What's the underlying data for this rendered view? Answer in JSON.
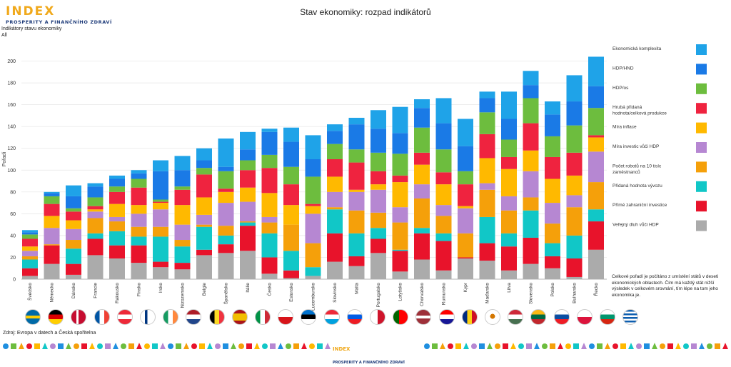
{
  "header": {
    "logo_main": "INDEX",
    "logo_sub": "PROSPERITY A FINANČNÍHO ZDRAVÍ",
    "title": "Stav ekonomiky: rozpad indikátorů"
  },
  "filter": {
    "label": "Indikátory stavu ekonomiky",
    "value": "All"
  },
  "note": "Celkové pořadí je počítáno z umístění států v deseti ekonomických oblastech. Čím má každý stát nižší výsledek v celkovém srovnání, tím lépe na tom jeho ekonomika je.",
  "source": "Zdroj: Evropa v datech a Česká spořitelna",
  "footer_logo": {
    "l1": "INDEX",
    "l2": "PROSPERITY A FINANČNÍHO ZDRAVÍ"
  },
  "chart_data": {
    "type": "bar",
    "stacked": true,
    "title": "Stav ekonomiky: rozpad indikátorů",
    "ylabel": "Pořadí",
    "xlabel": "",
    "ylim": [
      0,
      220
    ],
    "yticks": [
      0,
      20,
      40,
      60,
      80,
      100,
      120,
      140,
      160,
      180,
      200
    ],
    "grid": true,
    "legend_position": "right",
    "categories": [
      "Švédsko",
      "Německo",
      "Dánsko",
      "Francie",
      "Rakousko",
      "Finsko",
      "Irsko",
      "Nizozemsko",
      "Belgie",
      "Španělsko",
      "Itálie",
      "Česko",
      "Estonsko",
      "Lucembursko",
      "Slovinsko",
      "Malta",
      "Portugalsko",
      "Lotyšsko",
      "Chorvatsko",
      "Rumunsko",
      "Kypr",
      "Maďarsko",
      "Litva",
      "Slovensko",
      "Polsko",
      "Bulharsko",
      "Řecko"
    ],
    "series": [
      {
        "name": "Veřejný dluh vůči HDP",
        "color": "#ababab",
        "values": [
          3,
          14,
          4,
          22,
          19,
          15,
          11,
          9,
          22,
          24,
          26,
          5,
          1,
          3,
          16,
          12,
          24,
          7,
          18,
          8,
          19,
          17,
          8,
          14,
          10,
          2,
          27
        ]
      },
      {
        "name": "Přímé zahraniční investice",
        "color": "#e8132b",
        "values": [
          7,
          17,
          10,
          15,
          12,
          16,
          5,
          6,
          5,
          8,
          23,
          15,
          7,
          0,
          26,
          9,
          13,
          19,
          24,
          27,
          1,
          16,
          22,
          24,
          11,
          17,
          26
        ]
      },
      {
        "name": "Přidaná hodnota vývozu",
        "color": "#11c7c7",
        "values": [
          8,
          0,
          14,
          5,
          13,
          8,
          23,
          15,
          21,
          8,
          3,
          22,
          18,
          8,
          22,
          21,
          10,
          1,
          5,
          7,
          0,
          24,
          12,
          25,
          12,
          21,
          11
        ]
      },
      {
        "name": "Počet robotů na 10 tisíc zaměstnanců",
        "color": "#f5a00a",
        "values": [
          3,
          1,
          8,
          14,
          9,
          9,
          9,
          6,
          2,
          9,
          1,
          10,
          24,
          22,
          2,
          21,
          14,
          25,
          27,
          16,
          22,
          25,
          21,
          12,
          18,
          26,
          25
        ]
      },
      {
        "name": "Míra investic vůči HDP",
        "color": "#b687d2",
        "values": [
          5,
          15,
          10,
          6,
          4,
          12,
          16,
          14,
          9,
          21,
          18,
          5,
          0,
          27,
          14,
          17,
          21,
          14,
          13,
          10,
          23,
          6,
          13,
          24,
          19,
          11,
          28
        ]
      },
      {
        "name": "Míra inflace",
        "color": "#ffb900",
        "values": [
          4,
          11,
          8,
          2,
          12,
          8,
          6,
          18,
          16,
          10,
          13,
          22,
          18,
          7,
          14,
          2,
          5,
          23,
          18,
          19,
          2,
          23,
          25,
          19,
          22,
          18,
          13
        ]
      },
      {
        "name": "Hrubá přidaná hodnota/celková produkce",
        "color": "#ef233f",
        "values": [
          7,
          11,
          8,
          3,
          11,
          16,
          1,
          14,
          21,
          3,
          16,
          23,
          19,
          2,
          16,
          25,
          12,
          6,
          11,
          11,
          20,
          22,
          11,
          25,
          20,
          21,
          2
        ]
      },
      {
        "name": "HDP/os",
        "color": "#6dbd3e",
        "values": [
          4,
          7,
          3,
          8,
          5,
          8,
          2,
          3,
          6,
          16,
          9,
          12,
          16,
          25,
          14,
          12,
          17,
          20,
          23,
          21,
          12,
          20,
          16,
          23,
          19,
          25,
          25
        ]
      },
      {
        "name": "HDP/HND",
        "color": "#1a7ae6",
        "values": [
          2,
          3,
          11,
          10,
          7,
          5,
          26,
          15,
          7,
          4,
          10,
          21,
          23,
          16,
          12,
          23,
          22,
          19,
          18,
          24,
          23,
          13,
          19,
          12,
          20,
          22,
          20
        ]
      },
      {
        "name": "Ekonomická komplexita",
        "color": "#1fa3e8",
        "values": [
          2,
          1,
          10,
          3,
          3,
          3,
          10,
          13,
          11,
          26,
          16,
          3,
          13,
          22,
          6,
          6,
          17,
          24,
          8,
          23,
          25,
          6,
          25,
          13,
          12,
          24,
          27
        ]
      }
    ]
  }
}
